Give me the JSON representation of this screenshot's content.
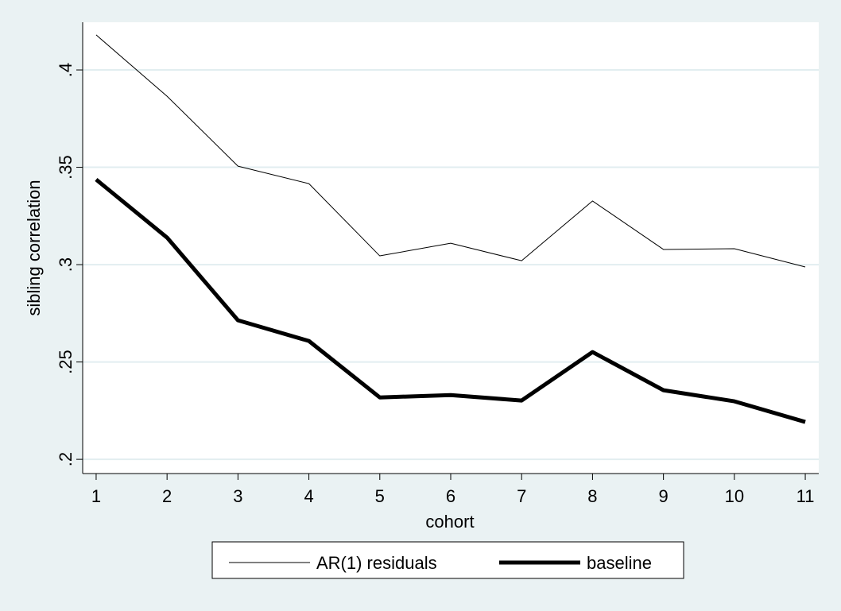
{
  "chart_data": {
    "type": "line",
    "x_label": "cohort",
    "y_label": "sibling correlation",
    "x": [
      1,
      2,
      3,
      4,
      5,
      6,
      7,
      8,
      9,
      10,
      11
    ],
    "xlim": [
      0.81,
      11.19
    ],
    "xticks": [
      1,
      2,
      3,
      4,
      5,
      6,
      7,
      8,
      9,
      10,
      11
    ],
    "ylim": [
      0.1927,
      0.4245
    ],
    "yticks": [
      {
        "value": 0.2,
        "label": ".2"
      },
      {
        "value": 0.25,
        "label": ".25"
      },
      {
        "value": 0.3,
        "label": ".3"
      },
      {
        "value": 0.35,
        "label": ".35"
      },
      {
        "value": 0.4,
        "label": ".4"
      }
    ],
    "grid": true,
    "legend": "bottom",
    "series": [
      {
        "name": "AR(1) residuals",
        "color": "#000000",
        "width": 1,
        "values": [
          0.418,
          0.3865,
          0.3506,
          0.3416,
          0.3045,
          0.311,
          0.302,
          0.3327,
          0.3078,
          0.3082,
          0.2988
        ]
      },
      {
        "name": "baseline",
        "color": "#000000",
        "width": 5,
        "values": [
          0.3437,
          0.3139,
          0.2714,
          0.2608,
          0.2318,
          0.233,
          0.2302,
          0.2551,
          0.2355,
          0.2298,
          0.2192
        ]
      }
    ]
  }
}
